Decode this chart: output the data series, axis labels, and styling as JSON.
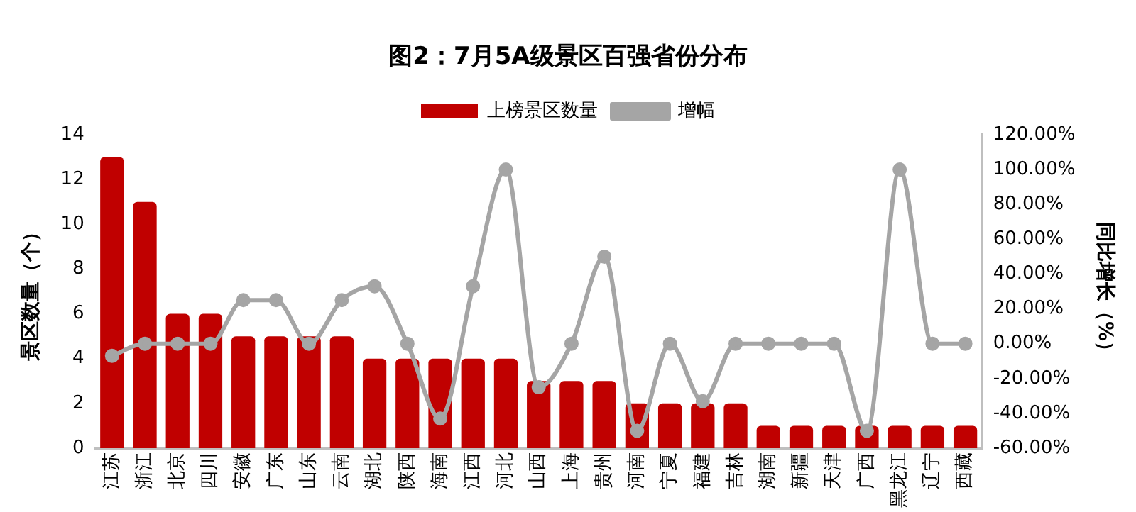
{
  "chart_data": {
    "type": "bar",
    "title": "图2：7月5A级景区百强省份分布",
    "categories": [
      "江苏",
      "浙江",
      "北京",
      "四川",
      "安徽",
      "广东",
      "山东",
      "云南",
      "湖北",
      "陕西",
      "海南",
      "江西",
      "河北",
      "山西",
      "上海",
      "贵州",
      "河南",
      "宁夏",
      "福建",
      "吉林",
      "湖南",
      "新疆",
      "天津",
      "广西",
      "黑龙江",
      "辽宁",
      "西藏"
    ],
    "series": [
      {
        "name": "上榜景区数量",
        "color": "#c00000",
        "values": [
          13,
          11,
          6,
          6,
          5,
          5,
          5,
          5,
          4,
          4,
          4,
          4,
          4,
          3,
          3,
          3,
          2,
          2,
          2,
          2,
          1,
          1,
          1,
          1,
          1,
          1,
          1
        ]
      },
      {
        "name": "增幅",
        "type": "line",
        "axis": "y2",
        "color": "#a5a5a5",
        "values": [
          -7,
          0,
          0,
          0,
          25,
          25,
          0,
          25,
          33,
          0,
          -43,
          33,
          100,
          -25,
          0,
          50,
          -50,
          0,
          -33,
          0,
          0,
          0,
          0,
          -50,
          100,
          0,
          0
        ]
      }
    ],
    "ylabel": "景区数量（个）",
    "y2label": "同比增长（%）",
    "ylim": [
      0,
      14
    ],
    "yticks": [
      0,
      2,
      4,
      6,
      8,
      10,
      12,
      14
    ],
    "y2lim": [
      -60,
      120
    ],
    "y2ticks": [
      {
        "value": -60,
        "label": "-60.00%"
      },
      {
        "value": -40,
        "label": "-40.00%"
      },
      {
        "value": -20,
        "label": "-20.00%"
      },
      {
        "value": 0,
        "label": "0.00%"
      },
      {
        "value": 20,
        "label": "20.00%"
      },
      {
        "value": 40,
        "label": "40.00%"
      },
      {
        "value": 60,
        "label": "60.00%"
      },
      {
        "value": 80,
        "label": "80.00%"
      },
      {
        "value": 100,
        "label": "100.00%"
      },
      {
        "value": 120,
        "label": "120.00%"
      }
    ],
    "legend": "top",
    "marker": "circle",
    "grid": false
  }
}
